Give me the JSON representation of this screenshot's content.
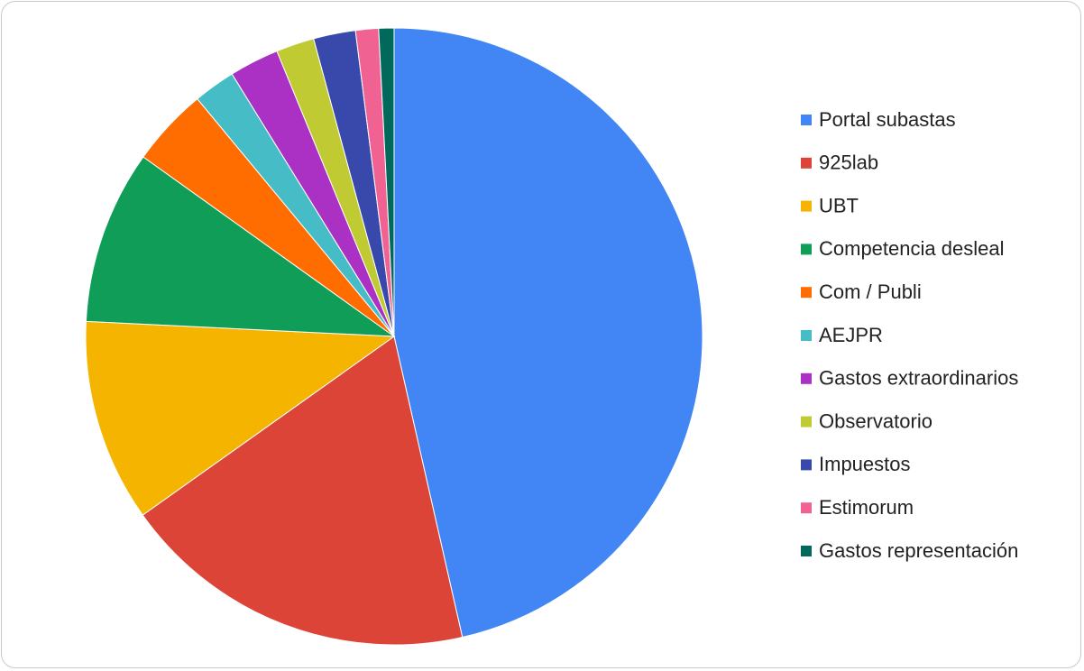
{
  "chart_data": {
    "type": "pie",
    "categories": [
      "Portal subastas",
      "925lab",
      "UBT",
      "Competencia desleal",
      "Com / Publi",
      "AEJPR",
      "Gastos extraordinarios",
      "Observatorio",
      "Impuestos",
      "Estimorum",
      "Gastos representación"
    ],
    "values": [
      46.4,
      18.7,
      10.6,
      9.1,
      4.1,
      2.2,
      2.6,
      2.0,
      2.2,
      1.2,
      0.8
    ],
    "colors": [
      "#4285f4",
      "#db4437",
      "#f4b400",
      "#0f9d58",
      "#ff6d00",
      "#46bdc6",
      "#ab30c4",
      "#c0ca33",
      "#3949ab",
      "#f06292",
      "#00695c"
    ],
    "legend": "right"
  }
}
